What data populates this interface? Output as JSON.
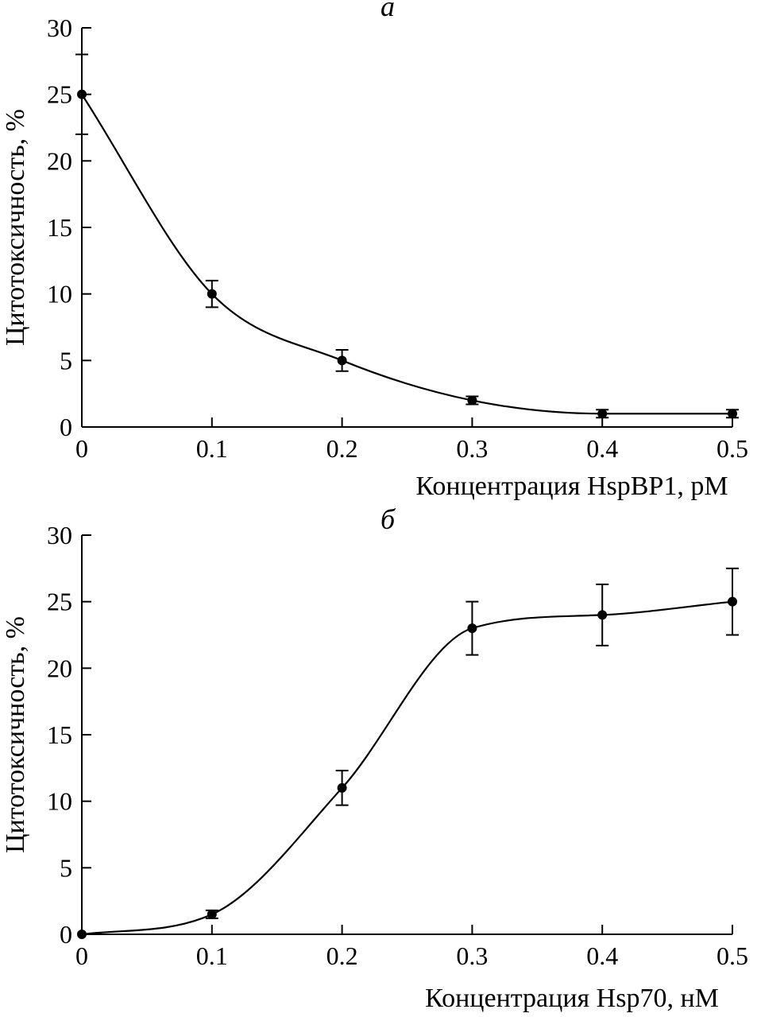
{
  "chart_data": [
    {
      "type": "line",
      "panel_label": "а",
      "title": "",
      "xlabel": "Концентрация HspBP1, pM",
      "ylabel": "Цитотоксичность, %",
      "xlim": [
        0,
        0.5
      ],
      "ylim": [
        0,
        30
      ],
      "x_ticks": [
        "0",
        "0.1",
        "0.2",
        "0.3",
        "0.4",
        "0.5"
      ],
      "y_ticks": [
        "0",
        "5",
        "10",
        "15",
        "20",
        "25",
        "30"
      ],
      "grid": false,
      "legend": "none",
      "smooth_curve": true,
      "points": [
        {
          "x": 0,
          "y": 25,
          "err": 3
        },
        {
          "x": 0.1,
          "y": 10,
          "err": 1
        },
        {
          "x": 0.2,
          "y": 5,
          "err": 0.8
        },
        {
          "x": 0.3,
          "y": 2,
          "err": 0.3
        },
        {
          "x": 0.4,
          "y": 1,
          "err": 0.3
        },
        {
          "x": 0.5,
          "y": 1,
          "err": 0.3
        }
      ]
    },
    {
      "type": "line",
      "panel_label": "б",
      "title": "",
      "xlabel": "Концентрация Hsp70, нМ",
      "ylabel": "Цитотоксичность, %",
      "xlim": [
        0,
        0.5
      ],
      "ylim": [
        0,
        30
      ],
      "x_ticks": [
        "0",
        "0.1",
        "0.2",
        "0.3",
        "0.4",
        "0.5"
      ],
      "y_ticks": [
        "0",
        "5",
        "10",
        "15",
        "20",
        "25",
        "30"
      ],
      "grid": false,
      "legend": "none",
      "smooth_curve": true,
      "points": [
        {
          "x": 0,
          "y": 0,
          "err": 0
        },
        {
          "x": 0.1,
          "y": 1.5,
          "err": 0.3
        },
        {
          "x": 0.2,
          "y": 11,
          "err": 1.3
        },
        {
          "x": 0.3,
          "y": 23,
          "err": 2
        },
        {
          "x": 0.4,
          "y": 24,
          "err": 2.3
        },
        {
          "x": 0.5,
          "y": 25,
          "err": 2.5
        }
      ]
    }
  ]
}
